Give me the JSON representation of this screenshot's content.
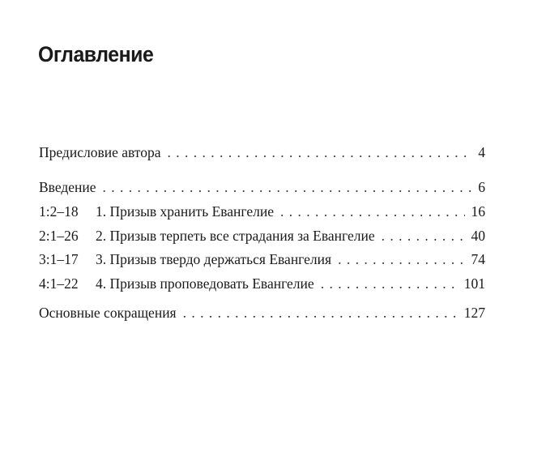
{
  "title": "Оглавление",
  "entries": [
    {
      "ref": "",
      "label": "Предисловие автора",
      "page": "4"
    },
    {
      "ref": "",
      "label": "Введение",
      "page": "6"
    },
    {
      "ref": "1:2–18",
      "label": "1. Призыв хранить Евангелие",
      "page": "16"
    },
    {
      "ref": "2:1–26",
      "label": "2. Призыв терпеть все страдания за Евангелие",
      "page": "40"
    },
    {
      "ref": "3:1–17",
      "label": "3. Призыв твердо держаться Евангелия",
      "page": "74"
    },
    {
      "ref": "4:1–22",
      "label": "4. Призыв проповедовать Евангелие",
      "page": "101"
    },
    {
      "ref": "",
      "label": "Основные сокращения",
      "page": "127"
    }
  ]
}
